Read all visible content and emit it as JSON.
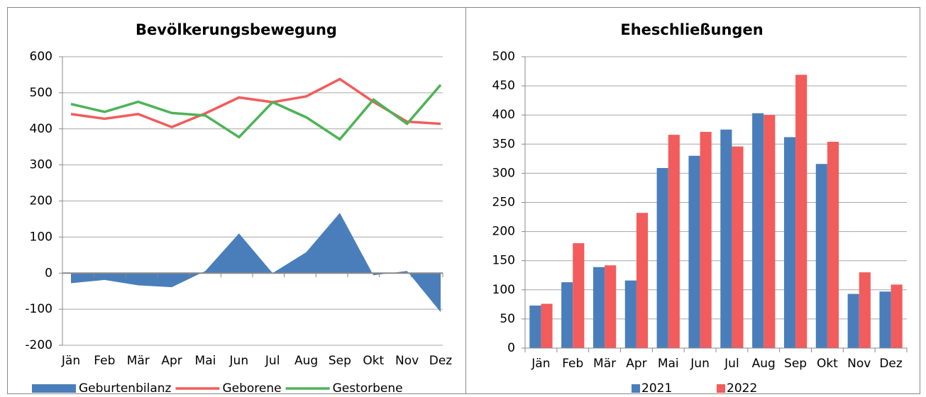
{
  "chart_data": [
    {
      "type": "line",
      "title": "Bevölkerungsbewegung",
      "categories": [
        "Jän",
        "Feb",
        "Mär",
        "Apr",
        "Mai",
        "Jun",
        "Jul",
        "Aug",
        "Sep",
        "Okt",
        "Nov",
        "Dez"
      ],
      "series": [
        {
          "name": "Geburtenbilanz",
          "type": "area",
          "color": "#4a7ebb",
          "values": [
            -28,
            -19,
            -34,
            -39,
            6,
            110,
            0,
            58,
            167,
            -6,
            6,
            -108
          ]
        },
        {
          "name": "Geborene",
          "type": "line",
          "color": "#f25c5c",
          "values": [
            441,
            428,
            441,
            405,
            443,
            487,
            474,
            490,
            538,
            475,
            420,
            414
          ]
        },
        {
          "name": "Gestorbene",
          "type": "line",
          "color": "#4db356",
          "values": [
            469,
            447,
            475,
            444,
            437,
            377,
            474,
            432,
            371,
            481,
            414,
            522
          ]
        }
      ],
      "ylim": [
        -200,
        600
      ],
      "yticks": [
        -200,
        -100,
        0,
        100,
        200,
        300,
        400,
        500,
        600
      ],
      "grid": true,
      "legend": "bottom"
    },
    {
      "type": "bar",
      "title": "Eheschließungen",
      "categories": [
        "Jän",
        "Feb",
        "Mär",
        "Apr",
        "Mai",
        "Jun",
        "Jul",
        "Aug",
        "Sep",
        "Okt",
        "Nov",
        "Dez"
      ],
      "series": [
        {
          "name": "2021",
          "color": "#4a7ebb",
          "values": [
            73,
            113,
            139,
            116,
            309,
            330,
            375,
            403,
            362,
            316,
            93,
            97
          ]
        },
        {
          "name": "2022",
          "color": "#f25c5c",
          "values": [
            76,
            180,
            142,
            232,
            366,
            371,
            346,
            400,
            469,
            354,
            130,
            109
          ]
        }
      ],
      "ylim": [
        0,
        500
      ],
      "yticks": [
        0,
        50,
        100,
        150,
        200,
        250,
        300,
        350,
        400,
        450,
        500
      ],
      "grid": true,
      "legend": "bottom"
    }
  ]
}
